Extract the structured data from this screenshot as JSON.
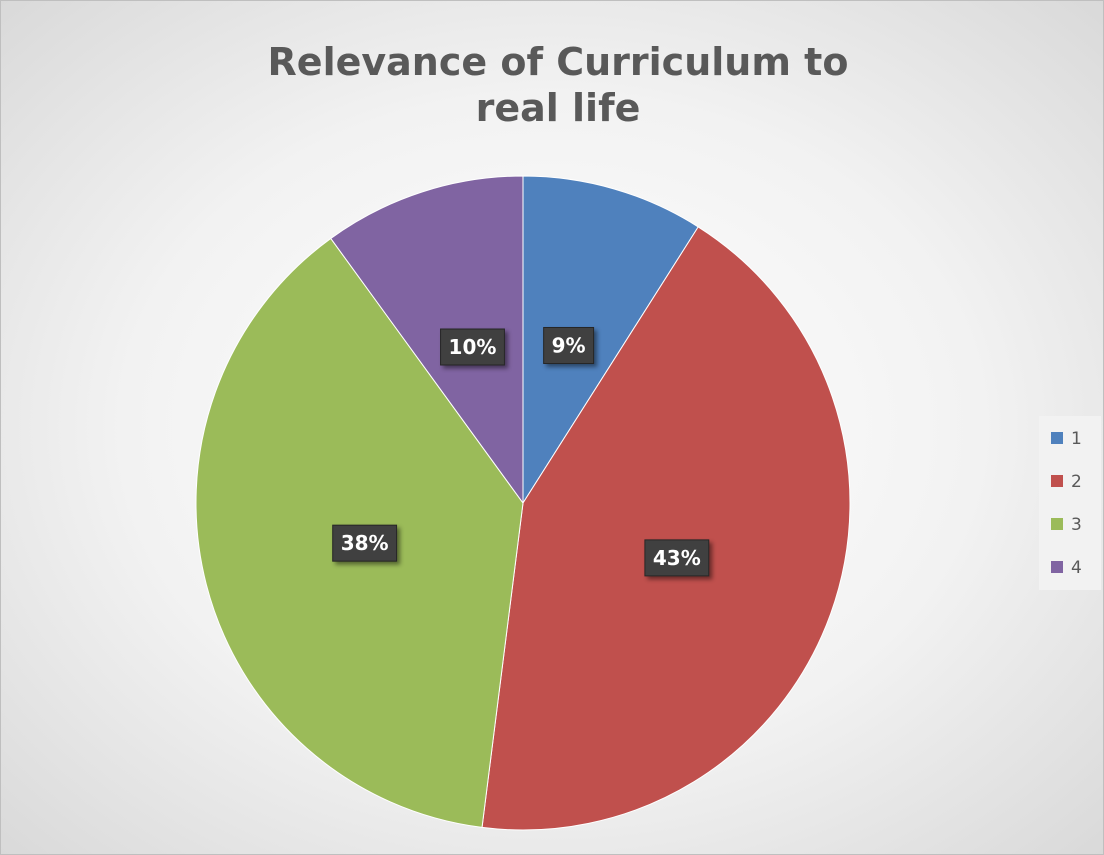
{
  "chart_data": {
    "type": "pie",
    "title": "Relevance of Curriculum to real life",
    "categories": [
      "1",
      "2",
      "3",
      "4"
    ],
    "values": [
      9,
      43,
      38,
      10
    ],
    "value_labels": [
      "9%",
      "43%",
      "38%",
      "10%"
    ],
    "colors": [
      "#4f81bd",
      "#c0504d",
      "#9bbb59",
      "#8064a2"
    ],
    "legend": "right"
  }
}
